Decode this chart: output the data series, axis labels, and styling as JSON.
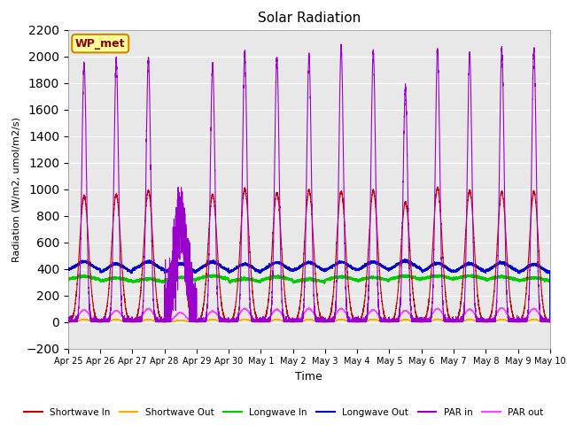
{
  "title": "Solar Radiation",
  "xlabel": "Time",
  "ylabel": "Radiation (W/m2, umol/m2/s)",
  "ylim": [
    -200,
    2200
  ],
  "yticks": [
    -200,
    0,
    200,
    400,
    600,
    800,
    1000,
    1200,
    1400,
    1600,
    1800,
    2000,
    2200
  ],
  "fig_bg": "#ffffff",
  "plot_bg": "#e8e8e8",
  "annotation_text": "WP_met",
  "annotation_bg": "#ffff99",
  "annotation_border": "#cc8800",
  "colors": {
    "shortwave_in": "#cc0000",
    "shortwave_out": "#ffaa00",
    "longwave_in": "#00cc00",
    "longwave_out": "#0000cc",
    "par_in": "#9900cc",
    "par_out": "#ff44ff"
  },
  "legend_labels": [
    "Shortwave In",
    "Shortwave Out",
    "Longwave In",
    "Longwave Out",
    "PAR in",
    "PAR out"
  ],
  "x_tick_labels": [
    "Apr 25",
    "Apr 26",
    "Apr 27",
    "Apr 28",
    "Apr 29",
    "Apr 30",
    "May 1",
    "May 2",
    "May 3",
    "May 4",
    "May 5",
    "May 6",
    "May 7",
    "May 8",
    "May 9",
    "May 10"
  ],
  "n_days": 15,
  "pts_per_day": 480
}
